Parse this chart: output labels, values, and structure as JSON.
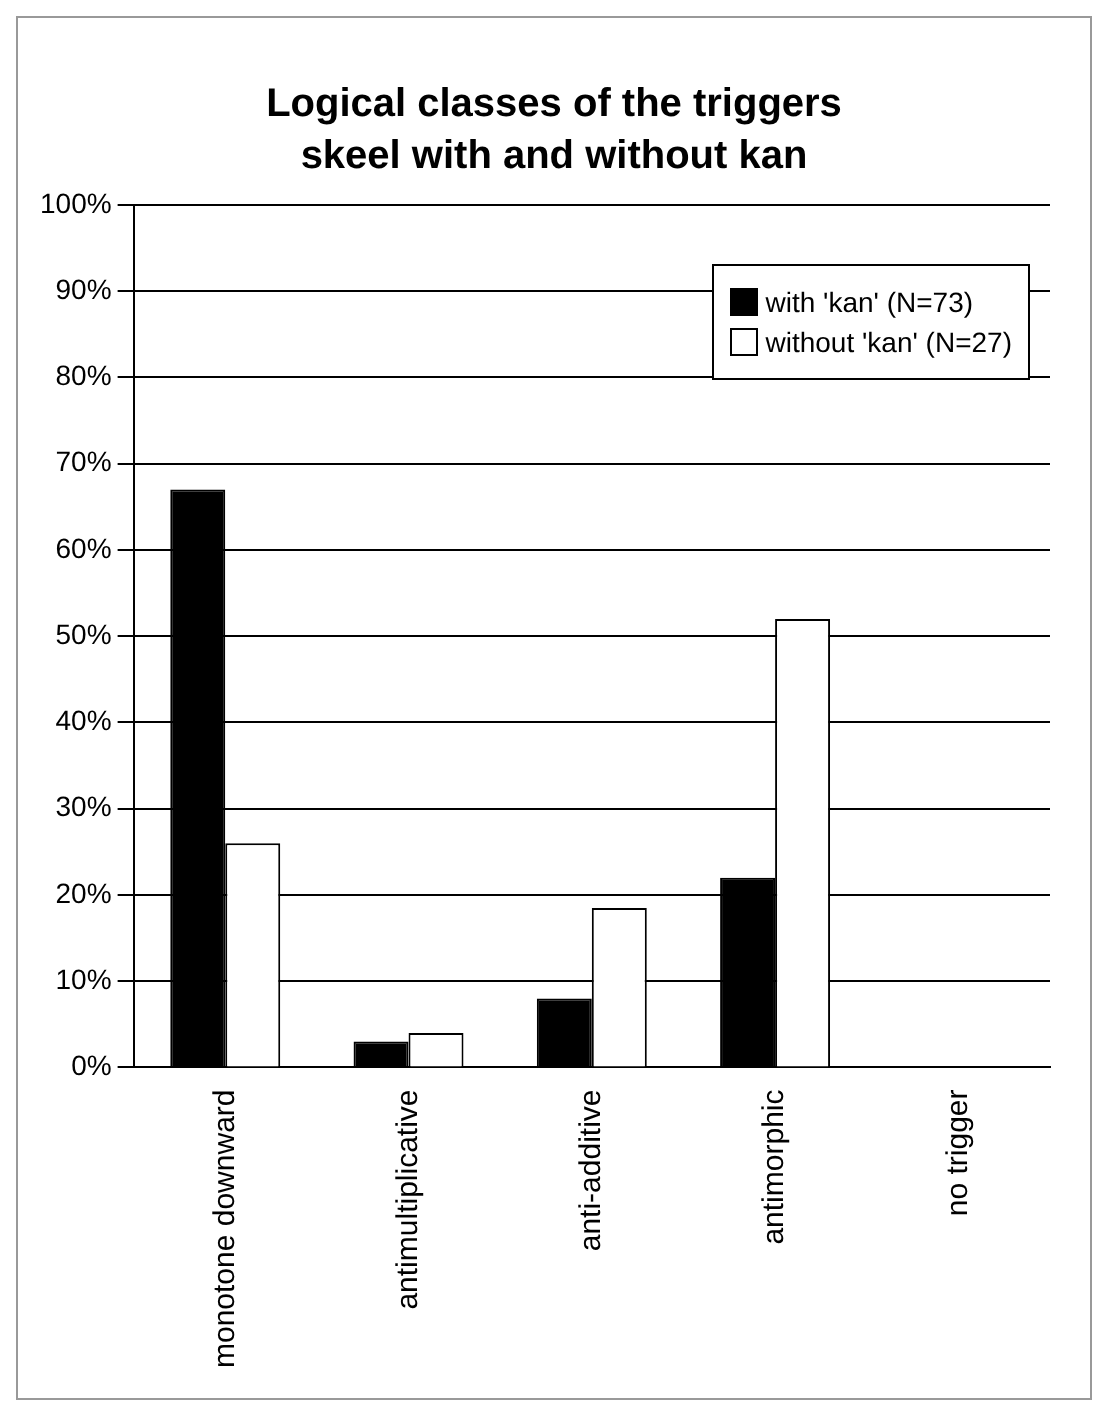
{
  "chart_data": {
    "type": "bar",
    "title": "Logical classes of the triggers skeel with and without kan",
    "categories": [
      "monotone downward",
      "antimultiplicative",
      "anti-additive",
      "antimorphic",
      "no trigger"
    ],
    "series": [
      {
        "name": "with 'kan' (N=73)",
        "color": "#000000",
        "values": [
          67,
          3,
          8,
          22,
          0
        ]
      },
      {
        "name": "without 'kan' (N=27)",
        "color": "#ffffff",
        "values": [
          26,
          4,
          18.5,
          52,
          0
        ]
      }
    ],
    "ylim": [
      0,
      100
    ],
    "yticks": [
      {
        "value": 0,
        "label": "0%"
      },
      {
        "value": 10,
        "label": "10%"
      },
      {
        "value": 20,
        "label": "20%"
      },
      {
        "value": 30,
        "label": "30%"
      },
      {
        "value": 40,
        "label": "40%"
      },
      {
        "value": 50,
        "label": "50%"
      },
      {
        "value": 60,
        "label": "60%"
      },
      {
        "value": 70,
        "label": "70%"
      },
      {
        "value": 80,
        "label": "80%"
      },
      {
        "value": 90,
        "label": "90%"
      },
      {
        "value": 100,
        "label": "100%"
      }
    ],
    "grid": "y",
    "legend": "top right"
  }
}
